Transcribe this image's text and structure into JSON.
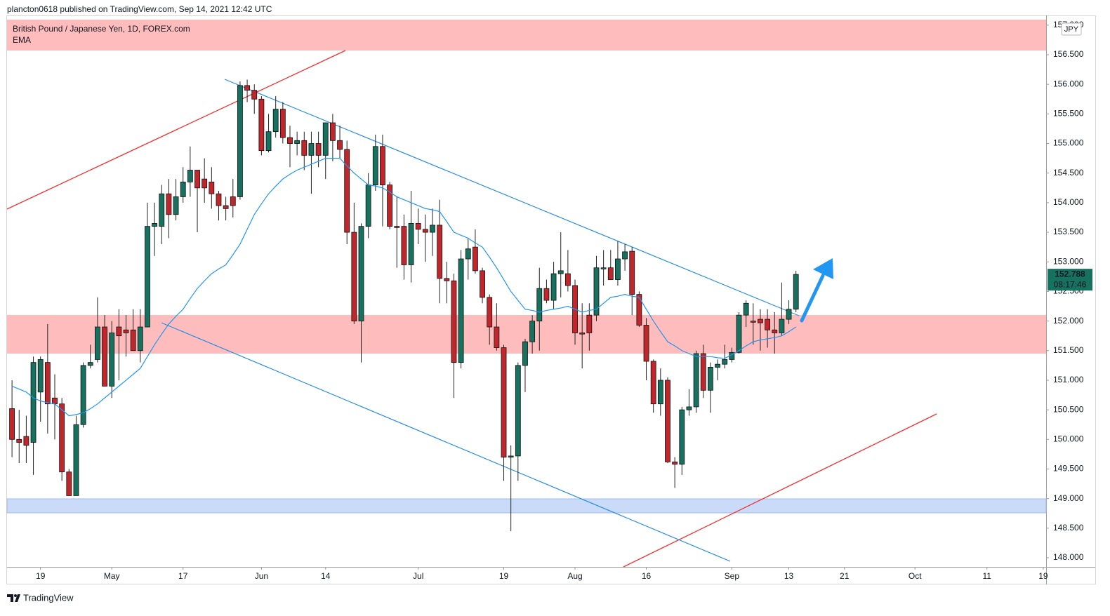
{
  "header": {
    "publisher": "plancton0618 published on TradingView.com, Sep 14, 2021 12:42 UTC",
    "brand": "TradingView"
  },
  "chart_data": {
    "type": "candlestick",
    "title": "British Pound / Japanese Yen, 1D, FOREX.com",
    "currency": "JPY",
    "countdown": "08:17:46",
    "up_color": "#17715f",
    "down_color": "#c0272d",
    "open": [
      150.52,
      150.0,
      150.05,
      149.95,
      150.8,
      151.3,
      150.7,
      150.6,
      149.45,
      149.05,
      150.25,
      151.25,
      151.35,
      151.9,
      150.9,
      151.9,
      151.85,
      151.85,
      151.5,
      151.9,
      153.6,
      153.6,
      154.15,
      153.8,
      154.1,
      154.35,
      154.55,
      154.4,
      154.35,
      154.15,
      153.95,
      154.1,
      154.1,
      155.98,
      155.9,
      155.75,
      154.88,
      155.2,
      155.58,
      155.1,
      155.0,
      155.05,
      154.8,
      155.0,
      154.8,
      155.35,
      155.05,
      154.9,
      153.5,
      152.0,
      153.6,
      154.3,
      154.95,
      154.3,
      153.6,
      153.6,
      152.95,
      153.65,
      153.55,
      153.5,
      153.62,
      152.72,
      152.68,
      151.3,
      153.05,
      153.25,
      152.85,
      152.4,
      151.9,
      151.55,
      149.7,
      149.72,
      151.25,
      151.65,
      152.0,
      152.55,
      152.35,
      152.8,
      152.8,
      152.6,
      151.8,
      152.1,
      152.1,
      152.88,
      152.9,
      152.7,
      153.05,
      153.18,
      152.45,
      151.93,
      151.32,
      150.6,
      151.0,
      149.62,
      149.58,
      150.5,
      150.55,
      151.45,
      150.83,
      151.22,
      151.27,
      151.35,
      151.47,
      152.1,
      152.0,
      152.03,
      152.03,
      151.85,
      151.8,
      152.03,
      152.2
    ],
    "high": [
      151.0,
      150.5,
      150.4,
      151.4,
      151.4,
      151.95,
      151.1,
      150.7,
      149.5,
      150.4,
      151.3,
      151.6,
      152.4,
      152.1,
      152.0,
      152.2,
      152.1,
      152.2,
      152.2,
      154.0,
      154.0,
      154.3,
      154.4,
      154.4,
      154.6,
      154.95,
      154.55,
      154.75,
      154.6,
      154.2,
      154.1,
      154.4,
      156.05,
      156.08,
      156.0,
      155.8,
      155.5,
      155.8,
      155.7,
      155.3,
      155.2,
      155.2,
      155.2,
      155.2,
      155.35,
      155.5,
      155.3,
      155.05,
      154.0,
      153.65,
      154.5,
      155.15,
      155.15,
      154.35,
      154.1,
      153.8,
      154.2,
      153.9,
      153.8,
      153.9,
      154.05,
      153.0,
      152.8,
      153.2,
      153.4,
      153.55,
      152.9,
      152.45,
      152.3,
      151.6,
      149.9,
      151.3,
      151.7,
      152.1,
      152.9,
      152.7,
      153.0,
      153.5,
      153.2,
      152.7,
      152.3,
      152.3,
      153.1,
      153.2,
      153.2,
      153.35,
      153.3,
      153.25,
      152.5,
      152.05,
      151.35,
      151.2,
      151.05,
      149.7,
      150.55,
      150.85,
      151.5,
      151.6,
      151.3,
      151.35,
      151.6,
      151.55,
      152.15,
      152.35,
      152.3,
      152.2,
      152.2,
      152.15,
      152.65,
      152.35,
      152.85
    ],
    "low": [
      149.7,
      149.6,
      149.6,
      149.4,
      150.3,
      150.1,
      150.0,
      149.3,
      149.05,
      149.05,
      150.2,
      151.2,
      151.3,
      150.9,
      150.7,
      151.0,
      151.4,
      151.5,
      151.3,
      151.9,
      153.1,
      153.3,
      153.4,
      153.7,
      154.0,
      154.1,
      153.5,
      154.0,
      153.9,
      153.7,
      153.7,
      153.75,
      154.05,
      155.7,
      155.5,
      154.8,
      154.85,
      155.1,
      155.0,
      154.6,
      154.8,
      154.55,
      154.15,
      154.6,
      154.4,
      154.7,
      154.75,
      153.3,
      151.95,
      151.3,
      153.4,
      154.2,
      153.6,
      153.55,
      152.9,
      152.7,
      152.65,
      153.3,
      153.0,
      153.1,
      152.3,
      152.3,
      150.7,
      151.2,
      152.7,
      152.8,
      152.3,
      151.6,
      151.5,
      149.3,
      148.45,
      149.3,
      150.8,
      151.45,
      151.5,
      152.3,
      152.2,
      152.4,
      152.5,
      151.6,
      151.2,
      151.5,
      152.0,
      152.6,
      152.7,
      152.6,
      152.85,
      152.1,
      151.9,
      151.0,
      150.45,
      150.4,
      149.6,
      149.18,
      149.4,
      150.4,
      150.45,
      150.7,
      150.45,
      151.0,
      151.2,
      151.3,
      151.45,
      151.9,
      151.6,
      151.5,
      151.55,
      151.45,
      151.75,
      151.95,
      152.15
    ],
    "close": [
      150.0,
      149.95,
      149.9,
      151.3,
      151.35,
      150.6,
      150.6,
      149.45,
      149.05,
      150.25,
      151.25,
      151.3,
      151.9,
      150.9,
      151.8,
      151.75,
      151.8,
      151.5,
      151.9,
      153.6,
      153.65,
      154.15,
      153.8,
      154.1,
      154.35,
      154.55,
      154.25,
      154.25,
      154.15,
      153.95,
      153.9,
      153.95,
      155.98,
      155.9,
      155.75,
      154.88,
      155.2,
      155.58,
      155.1,
      155.0,
      155.05,
      154.8,
      155.0,
      154.8,
      155.35,
      155.05,
      154.9,
      153.5,
      152.0,
      153.6,
      154.3,
      154.95,
      154.3,
      153.6,
      153.58,
      152.95,
      153.65,
      153.55,
      153.5,
      153.62,
      152.72,
      152.68,
      151.3,
      153.05,
      153.22,
      152.85,
      152.4,
      151.9,
      151.55,
      149.7,
      149.72,
      151.25,
      151.65,
      152.0,
      152.55,
      152.35,
      152.8,
      152.85,
      152.6,
      151.8,
      151.78,
      151.8,
      152.9,
      152.9,
      152.7,
      153.05,
      153.17,
      152.45,
      151.93,
      151.32,
      150.6,
      151.0,
      149.62,
      149.58,
      150.5,
      150.55,
      151.45,
      150.83,
      151.22,
      151.27,
      151.35,
      151.47,
      152.1,
      152.3,
      151.98,
      151.97,
      151.85,
      151.8,
      152.03,
      152.2,
      152.788
    ],
    "overlays": [
      {
        "name": "EMA",
        "color": "#2196f3",
        "values": [
          150.9,
          150.85,
          150.8,
          150.7,
          150.65,
          150.62,
          150.6,
          150.5,
          150.4,
          150.42,
          150.45,
          150.52,
          150.6,
          150.7,
          150.8,
          150.9,
          151.0,
          151.1,
          151.2,
          151.4,
          151.6,
          151.78,
          151.95,
          152.08,
          152.2,
          152.38,
          152.55,
          152.68,
          152.8,
          152.88,
          152.95,
          153.12,
          153.3,
          153.55,
          153.8,
          153.98,
          154.15,
          154.28,
          154.4,
          154.48,
          154.55,
          154.6,
          154.65,
          154.7,
          154.75,
          154.75,
          154.75,
          154.62,
          154.5,
          154.4,
          154.3,
          154.28,
          154.25,
          154.18,
          154.1,
          154.05,
          154.0,
          153.95,
          153.9,
          153.88,
          153.85,
          153.68,
          153.5,
          153.45,
          153.4,
          153.32,
          153.25,
          153.08,
          152.9,
          152.7,
          152.5,
          152.35,
          152.2,
          152.18,
          152.15,
          152.18,
          152.2,
          152.22,
          152.25,
          152.2,
          152.15,
          152.18,
          152.2,
          152.3,
          152.4,
          152.42,
          152.45,
          152.42,
          152.4,
          152.2,
          152.0,
          151.82,
          151.65,
          151.58,
          151.5,
          151.45,
          151.4,
          151.4,
          151.4,
          151.38,
          151.37,
          151.43,
          151.5,
          151.58,
          151.65,
          151.68,
          151.7,
          151.72,
          151.75,
          151.82,
          151.9
        ]
      }
    ],
    "xlim": [
      -0.7,
      145.1
    ],
    "xticks": [
      {
        "value": 4,
        "label": "19"
      },
      {
        "value": 14,
        "label": "May"
      },
      {
        "value": 24,
        "label": "17"
      },
      {
        "value": 35,
        "label": "Jun"
      },
      {
        "value": 44,
        "label": "14"
      },
      {
        "value": 57,
        "label": "Jul"
      },
      {
        "value": 69,
        "label": "19"
      },
      {
        "value": 79,
        "label": "Aug"
      },
      {
        "value": 89,
        "label": "16"
      },
      {
        "value": 101,
        "label": "Sep"
      },
      {
        "value": 109,
        "label": "13"
      },
      {
        "value": 116.8,
        "label": "21"
      },
      {
        "value": 126.7,
        "label": "Oct"
      },
      {
        "value": 136.8,
        "label": "11"
      },
      {
        "value": 144.7,
        "label": "19"
      }
    ],
    "ylim": [
      147.846,
      157.164
    ],
    "yticks": [
      {
        "value": 148,
        "label": "148.000"
      },
      {
        "value": 148.5,
        "label": "148.500"
      },
      {
        "value": 149,
        "label": "149.000"
      },
      {
        "value": 149.5,
        "label": "149.500"
      },
      {
        "value": 150,
        "label": "150.000"
      },
      {
        "value": 150.5,
        "label": "150.500"
      },
      {
        "value": 151,
        "label": "151.000"
      },
      {
        "value": 151.5,
        "label": "151.500"
      },
      {
        "value": 152,
        "label": "152.000"
      },
      {
        "value": 152.5,
        "label": "152.500"
      },
      {
        "value": 153,
        "label": "153.000"
      },
      {
        "value": 153.5,
        "label": "153.500"
      },
      {
        "value": 154,
        "label": "154.000"
      },
      {
        "value": 154.5,
        "label": "154.500"
      },
      {
        "value": 155,
        "label": "155.000"
      },
      {
        "value": 155.5,
        "label": "155.500"
      },
      {
        "value": 156,
        "label": "156.000"
      },
      {
        "value": 156.5,
        "label": "156.500"
      },
      {
        "value": 157,
        "label": "157.000"
      }
    ]
  }
}
